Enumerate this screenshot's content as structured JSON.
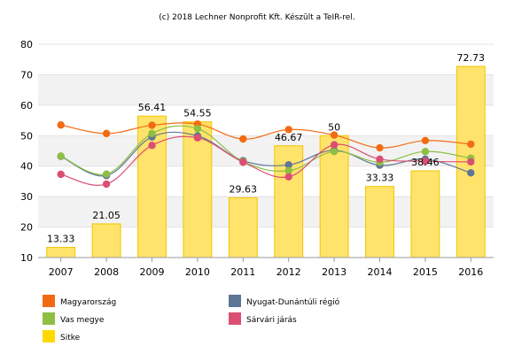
{
  "credit": "(c) 2018 Lechner Nonprofit Kft. Készült a TeIR-rel.",
  "chart_data": {
    "type": "bar",
    "categories": [
      "2007",
      "2008",
      "2009",
      "2010",
      "2011",
      "2012",
      "2013",
      "2014",
      "2015",
      "2016"
    ],
    "ylim": [
      10,
      80
    ],
    "yticks": [
      10,
      20,
      30,
      40,
      50,
      60,
      70,
      80
    ],
    "grid": true,
    "legend_position": "bottom",
    "bar_series": {
      "name": "Sitke",
      "color": "#FFD900",
      "values": [
        13.33,
        21.05,
        56.41,
        54.55,
        29.63,
        46.67,
        50,
        33.33,
        38.46,
        72.73
      ],
      "labels": [
        "13.33",
        "21.05",
        "56.41",
        "54.55",
        "29.63",
        "46.67",
        "50",
        "33.33",
        "38.46",
        "72.73"
      ]
    },
    "series": [
      {
        "name": "Magyarország",
        "color": "#F26B14",
        "values": [
          53.5,
          50.7,
          53.4,
          53.8,
          48.9,
          52.0,
          50.2,
          46.0,
          48.4,
          47.2
        ]
      },
      {
        "name": "Nyugat-Dunántúli régió",
        "color": "#5E7595",
        "values": [
          43.2,
          36.9,
          49.6,
          49.9,
          41.8,
          40.4,
          45.2,
          40.3,
          42.3,
          37.8
        ]
      },
      {
        "name": "Vas megye",
        "color": "#8DBF44",
        "values": [
          43.3,
          37.4,
          50.7,
          52.3,
          41.5,
          38.5,
          44.8,
          41.3,
          44.8,
          42.6
        ]
      },
      {
        "name": "Sárvári járás",
        "color": "#DB4F73",
        "values": [
          37.3,
          34.1,
          46.8,
          49.3,
          41.3,
          36.5,
          47.0,
          42.3,
          41.6,
          41.4
        ]
      }
    ]
  }
}
